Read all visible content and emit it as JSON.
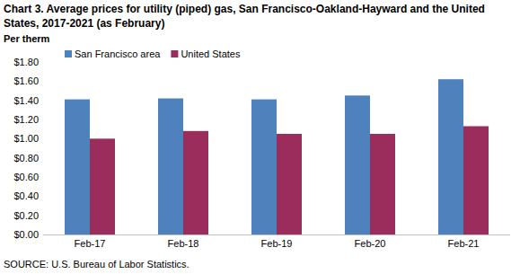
{
  "chart_data": {
    "type": "bar",
    "title": "Chart 3. Average prices for utility (piped) gas, San Francisco-Oakland-Hayward and the United States, 2017-2021 (as February)",
    "y_label": "Per therm",
    "source": "SOURCE: U.S. Bureau of Labor Statistics.",
    "categories": [
      "Feb-17",
      "Feb-18",
      "Feb-19",
      "Feb-20",
      "Feb-21"
    ],
    "series": [
      {
        "name": "San Francisco area",
        "color": "#4f81bd",
        "values": [
          1.41,
          1.42,
          1.41,
          1.45,
          1.62
        ]
      },
      {
        "name": "United States",
        "color": "#9b2d5c",
        "values": [
          1.0,
          1.08,
          1.05,
          1.05,
          1.13
        ]
      }
    ],
    "ylim": [
      0,
      1.8
    ],
    "yticks": [
      {
        "value": 0,
        "label": "$0.00"
      },
      {
        "value": 0.2,
        "label": "$0.20"
      },
      {
        "value": 0.4,
        "label": "$0.40"
      },
      {
        "value": 0.6,
        "label": "$0.60"
      },
      {
        "value": 0.8,
        "label": "$0.80"
      },
      {
        "value": 1.0,
        "label": "$1.00"
      },
      {
        "value": 1.2,
        "label": "$1.20"
      },
      {
        "value": 1.4,
        "label": "$1.40"
      },
      {
        "value": 1.6,
        "label": "$1.60"
      },
      {
        "value": 1.8,
        "label": "$1.80"
      }
    ],
    "grid": false,
    "legend": "top"
  }
}
